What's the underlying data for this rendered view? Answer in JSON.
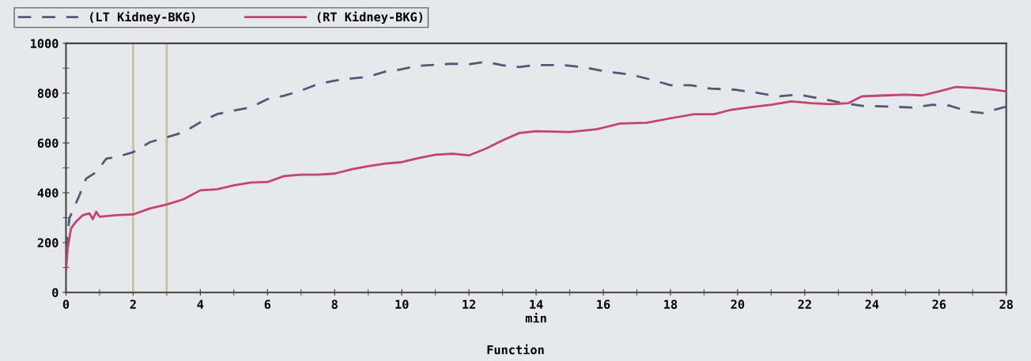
{
  "chart_data": {
    "type": "line",
    "xlabel": "min",
    "annotations": [
      "Function"
    ],
    "xlim": [
      0,
      28
    ],
    "xticks": [
      0,
      2,
      4,
      6,
      8,
      10,
      12,
      14,
      16,
      18,
      20,
      22,
      24,
      26,
      28
    ],
    "ylim": [
      0,
      1000
    ],
    "yticks": [
      0,
      200,
      400,
      600,
      800,
      1000
    ],
    "grid": false,
    "legend": "top left",
    "ref_lines": [
      {
        "axis": "x",
        "value": 2,
        "color": "#c9c2a2"
      },
      {
        "axis": "x",
        "value": 3,
        "color": "#c9c2a2"
      }
    ],
    "series": [
      {
        "name": "(LT Kidney-BKG)",
        "color": "#4d5a78",
        "line_style": "dashed",
        "x": [
          0,
          0.1,
          0.4,
          0.6,
          0.9,
          1.2,
          1.5,
          2,
          2.5,
          3,
          3.5,
          4,
          4.5,
          5,
          5.5,
          6,
          6.5,
          7,
          7.5,
          8,
          8.5,
          9,
          9.5,
          10,
          10.5,
          11,
          11.5,
          12,
          12.5,
          13,
          13.5,
          14,
          14.8,
          15.5,
          16.1,
          16.8,
          17.4,
          18,
          18.6,
          19.2,
          19.9,
          20.5,
          21.2,
          21.8,
          22.4,
          23,
          23.7,
          24.5,
          25.2,
          25.8,
          26.3,
          26.9,
          27.3,
          28
        ],
        "values": [
          170,
          297,
          390,
          457,
          483,
          537,
          543,
          563,
          603,
          623,
          643,
          683,
          716,
          730,
          743,
          776,
          790,
          810,
          836,
          850,
          859,
          866,
          886,
          896,
          910,
          914,
          918,
          916,
          926,
          912,
          905,
          913,
          913,
          902,
          886,
          875,
          855,
          832,
          832,
          818,
          814,
          803,
          787,
          794,
          780,
          764,
          749,
          746,
          742,
          753,
          750,
          726,
          720,
          746
        ]
      },
      {
        "name": "(RT Kidney-BKG)",
        "color": "#c2456e",
        "line_style": "solid",
        "x": [
          0,
          0.05,
          0.15,
          0.3,
          0.5,
          0.7,
          0.8,
          0.9,
          1,
          1.5,
          2,
          2.5,
          3,
          3.5,
          4,
          4.5,
          5,
          5.5,
          6,
          6.5,
          7,
          7.5,
          8,
          8.5,
          9,
          9.5,
          10,
          10.5,
          11,
          11.5,
          12,
          12.5,
          13,
          13.5,
          14,
          15,
          15.8,
          16.5,
          17.3,
          18,
          18.7,
          19.3,
          19.8,
          20.4,
          21,
          21.6,
          22.2,
          22.8,
          23.3,
          23.7,
          24.4,
          25,
          25.5,
          26,
          26.5,
          27.1,
          27.6,
          28
        ],
        "values": [
          84,
          177,
          257,
          284,
          310,
          317,
          294,
          324,
          304,
          310,
          313,
          337,
          353,
          374,
          410,
          414,
          430,
          441,
          443,
          467,
          473,
          473,
          477,
          494,
          507,
          517,
          523,
          539,
          553,
          557,
          550,
          577,
          610,
          640,
          647,
          644,
          655,
          678,
          681,
          699,
          715,
          715,
          733,
          744,
          753,
          767,
          760,
          756,
          760,
          787,
          791,
          794,
          791,
          807,
          825,
          821,
          814,
          807
        ]
      }
    ]
  }
}
